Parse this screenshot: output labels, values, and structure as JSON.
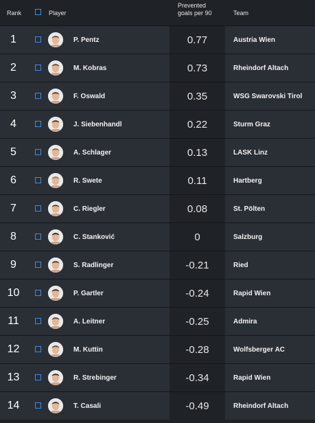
{
  "header": {
    "rank": "Rank",
    "player": "Player",
    "metric_line1": "Prevented",
    "metric_line2": "goals per 90",
    "team": "Team"
  },
  "rows": [
    {
      "rank": "1",
      "player": "P. Pentz",
      "value": "0.77",
      "team": "Austria Wien",
      "hair": "#7a4a2a"
    },
    {
      "rank": "2",
      "player": "M. Kobras",
      "value": "0.73",
      "team": "Rheindorf Altach",
      "hair": "#6b4a30"
    },
    {
      "rank": "3",
      "player": "F. Oswald",
      "value": "0.35",
      "team": "WSG Swarovski Tirol",
      "hair": "#5a3b22"
    },
    {
      "rank": "4",
      "player": "J. Siebenhandl",
      "value": "0.22",
      "team": "Sturm Graz",
      "hair": "#4a3322"
    },
    {
      "rank": "5",
      "player": "A. Schlager",
      "value": "0.13",
      "team": "LASK Linz",
      "hair": "#8a6a4a"
    },
    {
      "rank": "6",
      "player": "R. Swete",
      "value": "0.11",
      "team": "Hartberg",
      "hair": "#9a7a55"
    },
    {
      "rank": "7",
      "player": "C. Riegler",
      "value": "0.08",
      "team": "St. Pölten",
      "hair": "#5a4030"
    },
    {
      "rank": "8",
      "player": "C. Stanković",
      "value": "0",
      "team": "Salzburg",
      "hair": "#2a2220"
    },
    {
      "rank": "9",
      "player": "S. Radlinger",
      "value": "-0.21",
      "team": "Ried",
      "hair": "#4a3428"
    },
    {
      "rank": "10",
      "player": "P. Gartler",
      "value": "-0.24",
      "team": "Rapid Wien",
      "hair": "#3a2a20"
    },
    {
      "rank": "11",
      "player": "A. Leitner",
      "value": "-0.25",
      "team": "Admira",
      "hair": "#5a4432"
    },
    {
      "rank": "12",
      "player": "M. Kuttin",
      "value": "-0.28",
      "team": "Wolfsberger AC",
      "hair": "#6a5038"
    },
    {
      "rank": "13",
      "player": "R. Strebinger",
      "value": "-0.34",
      "team": "Rapid Wien",
      "hair": "#3a2a22"
    },
    {
      "rank": "14",
      "player": "T. Casali",
      "value": "-0.49",
      "team": "Rheindorf Altach",
      "hair": "#4a3628"
    }
  ]
}
